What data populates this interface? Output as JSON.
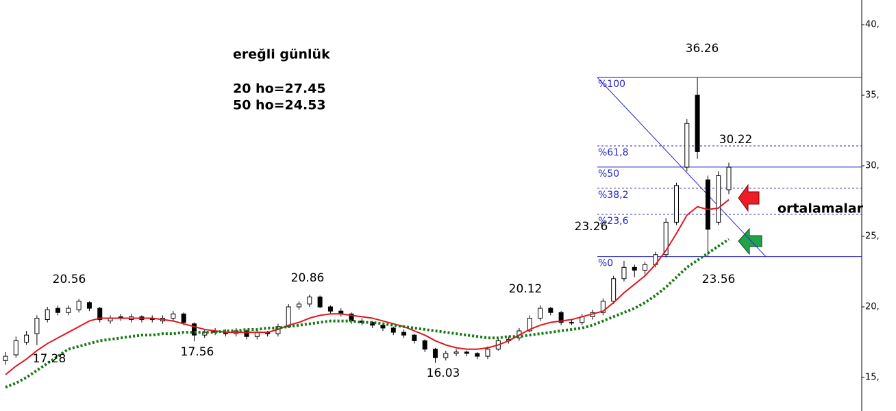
{
  "chart_data": {
    "type": "candlestick",
    "title": "ereğli günlük",
    "subtitle_lines": [
      "20 ho=27.45",
      "50 ho=24.53"
    ],
    "open": [
      16.2,
      16.6,
      17.5,
      18.1,
      19.1,
      19.9,
      19.6,
      19.8,
      20.3,
      19.9,
      19.0,
      19.3,
      19.1,
      19.3,
      19.2,
      19.0,
      19.2,
      19.5,
      18.8,
      18.0,
      18.3,
      18.2,
      18.1,
      18.3,
      17.9,
      18.2,
      18.1,
      18.6,
      20.0,
      20.2,
      20.7,
      20.0,
      19.7,
      19.5,
      19.0,
      18.9,
      18.7,
      18.5,
      18.2,
      18.0,
      17.6,
      17.0,
      16.4,
      16.7,
      16.8,
      16.7,
      16.5,
      17.0,
      17.6,
      17.8,
      18.3,
      19.2,
      19.9,
      19.6,
      18.9,
      18.9,
      19.3,
      19.6,
      20.4,
      22.0,
      22.8,
      22.6,
      23.0,
      23.7,
      26.0,
      29.9,
      35.0,
      29.0,
      26.0,
      28.3
    ],
    "high": [
      16.8,
      17.9,
      18.3,
      19.4,
      20.0,
      20.1,
      20.1,
      20.56,
      20.4,
      20.0,
      19.4,
      19.5,
      19.5,
      19.4,
      19.4,
      19.4,
      19.7,
      19.6,
      18.9,
      18.4,
      18.5,
      18.4,
      18.5,
      18.4,
      18.4,
      18.3,
      18.8,
      20.2,
      20.4,
      20.86,
      20.8,
      20.1,
      19.9,
      19.6,
      19.2,
      19.0,
      18.9,
      18.6,
      18.4,
      18.1,
      17.7,
      17.1,
      16.9,
      17.0,
      16.9,
      16.8,
      17.2,
      17.8,
      17.9,
      18.5,
      19.4,
      20.12,
      20.0,
      19.7,
      19.1,
      19.5,
      19.8,
      20.6,
      22.2,
      23.26,
      23.0,
      23.2,
      23.9,
      26.3,
      28.8,
      33.3,
      36.26,
      29.3,
      29.6,
      30.22
    ],
    "low": [
      15.9,
      16.4,
      17.3,
      17.28,
      18.9,
      19.4,
      19.4,
      19.6,
      19.7,
      18.9,
      18.8,
      19.0,
      18.9,
      18.9,
      18.9,
      18.8,
      19.0,
      18.7,
      17.56,
      17.8,
      18.0,
      17.9,
      17.9,
      17.7,
      17.7,
      17.9,
      17.9,
      18.5,
      19.8,
      20.0,
      19.9,
      19.5,
      19.3,
      18.8,
      18.7,
      18.5,
      18.3,
      18.0,
      17.8,
      17.4,
      16.8,
      16.03,
      16.2,
      16.5,
      16.5,
      16.3,
      16.3,
      16.9,
      17.4,
      17.6,
      18.2,
      19.0,
      19.4,
      18.7,
      18.7,
      18.7,
      19.1,
      19.4,
      20.2,
      21.8,
      22.1,
      22.3,
      22.8,
      23.5,
      25.8,
      29.6,
      30.5,
      23.56,
      25.8,
      28.0
    ],
    "close": [
      16.5,
      17.6,
      18.0,
      19.2,
      19.8,
      19.6,
      19.9,
      20.4,
      19.9,
      19.1,
      19.2,
      19.2,
      19.3,
      19.1,
      19.1,
      19.2,
      19.5,
      18.9,
      18.0,
      18.2,
      18.2,
      18.1,
      18.3,
      17.9,
      18.2,
      18.1,
      18.6,
      20.0,
      20.2,
      20.7,
      20.0,
      19.7,
      19.5,
      19.0,
      18.9,
      18.7,
      18.5,
      18.2,
      18.0,
      17.6,
      17.0,
      16.4,
      16.7,
      16.8,
      16.7,
      16.5,
      17.0,
      17.6,
      17.7,
      18.3,
      19.2,
      19.9,
      19.6,
      18.9,
      18.9,
      19.3,
      19.6,
      20.4,
      22.0,
      22.8,
      22.6,
      23.0,
      23.7,
      26.0,
      28.6,
      33.0,
      31.0,
      25.5,
      29.3,
      29.9
    ],
    "up_color": "#ffffff",
    "down_color": "#000000",
    "moving_averages": [
      {
        "color": "#e3141b",
        "dotted": false,
        "values": [
          15.2,
          15.8,
          16.3,
          16.9,
          17.4,
          17.8,
          18.2,
          18.6,
          19.0,
          19.2,
          19.2,
          19.2,
          19.2,
          19.2,
          19.2,
          19.1,
          19.0,
          18.8,
          18.6,
          18.4,
          18.3,
          18.2,
          18.2,
          18.2,
          18.2,
          18.2,
          18.4,
          18.7,
          18.9,
          19.2,
          19.4,
          19.5,
          19.5,
          19.4,
          19.3,
          19.2,
          19.0,
          18.8,
          18.6,
          18.3,
          18.0,
          17.6,
          17.3,
          17.1,
          17.0,
          17.0,
          17.1,
          17.3,
          17.6,
          18.0,
          18.4,
          18.7,
          18.9,
          19.0,
          19.1,
          19.3,
          19.5,
          19.7,
          20.3,
          21.0,
          21.6,
          22.2,
          23.0,
          24.0,
          25.2,
          26.5,
          27.1,
          26.9,
          27.0,
          27.6
        ]
      },
      {
        "color": "#127a12",
        "dotted": true,
        "values": [
          14.3,
          14.6,
          15.0,
          15.5,
          16.0,
          16.5,
          17.0,
          17.2,
          17.4,
          17.6,
          17.7,
          17.8,
          17.9,
          18.0,
          18.0,
          18.1,
          18.1,
          18.2,
          18.2,
          18.2,
          18.2,
          18.3,
          18.3,
          18.4,
          18.4,
          18.5,
          18.5,
          18.6,
          18.7,
          18.8,
          18.9,
          19.0,
          19.0,
          19.0,
          18.9,
          18.9,
          18.8,
          18.7,
          18.6,
          18.5,
          18.4,
          18.3,
          18.2,
          18.1,
          18.0,
          17.9,
          17.8,
          17.8,
          17.9,
          17.9,
          18.0,
          18.1,
          18.2,
          18.3,
          18.4,
          18.5,
          18.7,
          19.0,
          19.3,
          19.6,
          19.9,
          20.3,
          20.8,
          21.4,
          22.1,
          22.8,
          23.3,
          23.8,
          24.3,
          24.8
        ]
      }
    ],
    "fibonacci": {
      "color": "#2424c8",
      "levels": [
        {
          "label": "%100",
          "value": 36.26,
          "dashed": false
        },
        {
          "label": "%61,8",
          "value": 31.41,
          "dashed": true
        },
        {
          "label": "%50",
          "value": 29.91,
          "dashed": false
        },
        {
          "label": "%38,2",
          "value": 28.41,
          "dashed": true
        },
        {
          "label": "%23,6",
          "value": 26.56,
          "dashed": true
        },
        {
          "label": "%0",
          "value": 23.56,
          "dashed": false
        }
      ]
    },
    "annotations": [
      "20.56",
      "17.28",
      "17.56",
      "20.86",
      "16.03",
      "20.12",
      "23.26",
      "36.26",
      "30.22",
      "23.56"
    ],
    "note": "ortalamalar",
    "ylim": [
      12.62,
      41.75
    ],
    "yticks": [
      {
        "value": 15,
        "label": "15,"
      },
      {
        "value": 20,
        "label": "20,"
      },
      {
        "value": 25,
        "label": "25,"
      },
      {
        "value": 30,
        "label": "30,"
      },
      {
        "value": 35,
        "label": "35,"
      },
      {
        "value": 40,
        "label": "40,"
      }
    ]
  }
}
